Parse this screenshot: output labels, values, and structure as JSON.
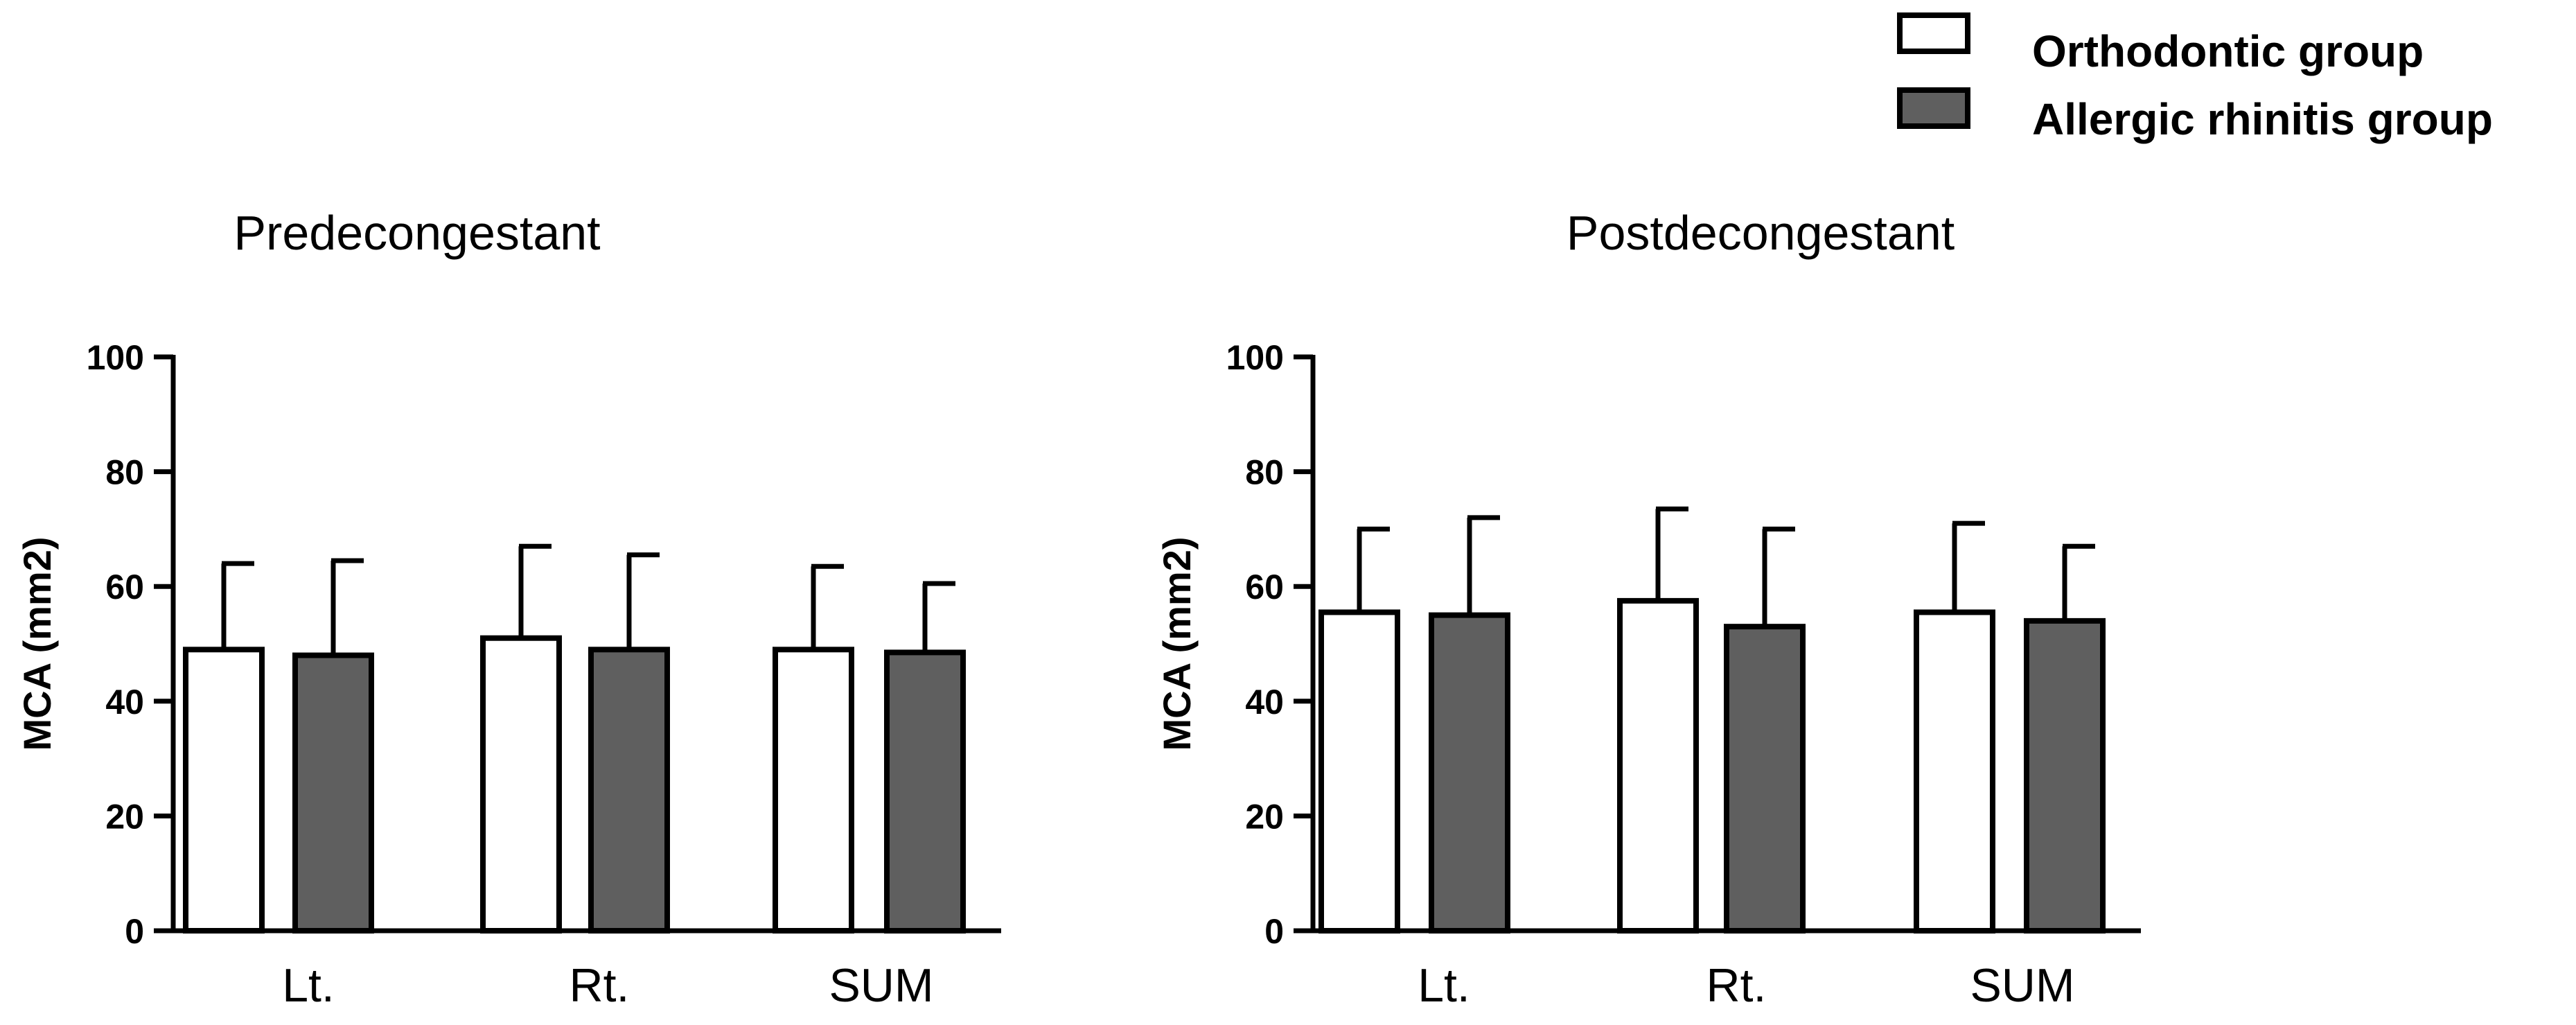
{
  "legend": [
    {
      "name": "Orthodontic group",
      "color": "#ffffff"
    },
    {
      "name": "Allergic rhinitis group",
      "color": "#5f5f5f"
    }
  ],
  "chart_data": [
    {
      "type": "bar",
      "title": "Predecongestant",
      "xlabel": "",
      "ylabel": "MCA (mm2)",
      "ylim": [
        0,
        100
      ],
      "yticks": [
        "0",
        "20",
        "40",
        "60",
        "80",
        "100"
      ],
      "categories": [
        "Lt.",
        "Rt.",
        "SUM"
      ],
      "series": [
        {
          "name": "Orthodontic group",
          "values": [
            49,
            51,
            49
          ],
          "error": [
            15,
            16,
            14.5
          ]
        },
        {
          "name": "Allergic rhinitis group",
          "values": [
            48,
            49,
            48.5
          ],
          "error": [
            16.5,
            16.5,
            12
          ]
        }
      ]
    },
    {
      "type": "bar",
      "title": "Postdecongestant",
      "xlabel": "",
      "ylabel": "MCA (mm2)",
      "ylim": [
        0,
        100
      ],
      "yticks": [
        "0",
        "20",
        "40",
        "60",
        "80",
        "100"
      ],
      "categories": [
        "Lt.",
        "Rt.",
        "SUM"
      ],
      "series": [
        {
          "name": "Orthodontic group",
          "values": [
            55.5,
            57.5,
            55.5
          ],
          "error": [
            14.5,
            16,
            15.5
          ]
        },
        {
          "name": "Allergic rhinitis group",
          "values": [
            55,
            53,
            54
          ],
          "error": [
            17,
            17,
            13
          ]
        }
      ]
    }
  ],
  "colors": {
    "axis": "#000000",
    "bar_outline": "#000000"
  }
}
